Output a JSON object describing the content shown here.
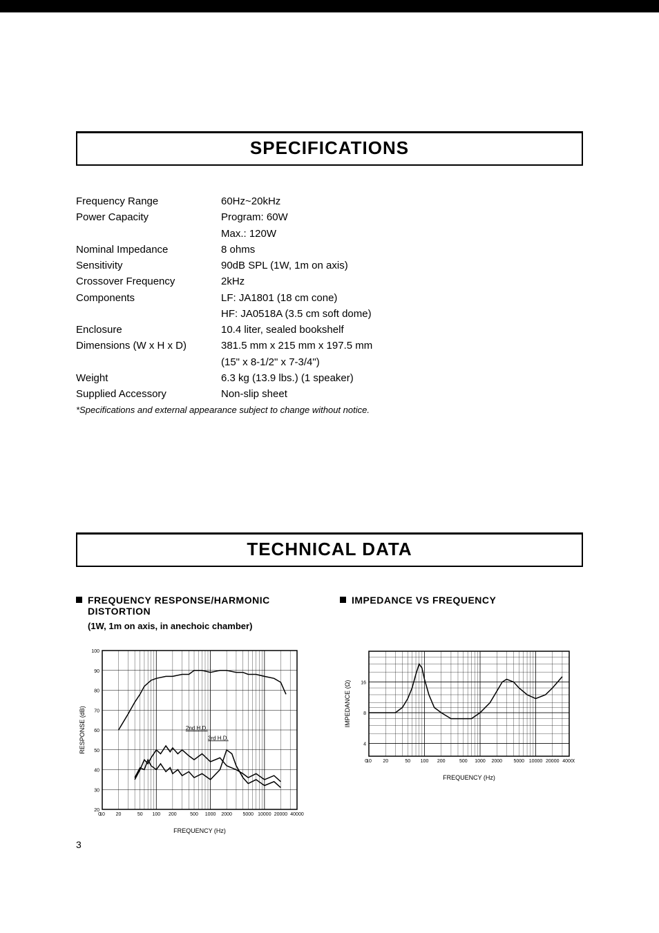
{
  "section_titles": {
    "specs": "SPECIFICATIONS",
    "tech": "TECHNICAL DATA"
  },
  "specs": {
    "rows": [
      {
        "label": "Frequency Range",
        "values": [
          "60Hz~20kHz"
        ]
      },
      {
        "label": "Power Capacity",
        "values": [
          "Program: 60W",
          "Max.: 120W"
        ]
      },
      {
        "label": "Nominal Impedance",
        "values": [
          "8 ohms"
        ]
      },
      {
        "label": "Sensitivity",
        "values": [
          "90dB SPL (1W, 1m on axis)"
        ]
      },
      {
        "label": "Crossover Frequency",
        "values": [
          "2kHz"
        ]
      },
      {
        "label": "Components",
        "values": [
          "LF: JA1801 (18 cm cone)",
          "HF: JA0518A (3.5 cm soft dome)"
        ]
      },
      {
        "label": "Enclosure",
        "values": [
          "10.4 liter, sealed bookshelf"
        ]
      },
      {
        "label": "Dimensions (W x H x D)",
        "values": [
          "381.5 mm x 215 mm x 197.5 mm",
          "(15\" x 8-1/2\" x 7-3/4\")"
        ]
      },
      {
        "label": "Weight",
        "values": [
          "6.3 kg (13.9 lbs.) (1 speaker)"
        ]
      },
      {
        "label": "Supplied Accessory",
        "values": [
          "Non-slip sheet"
        ]
      }
    ],
    "footnote": "*Specifications and external appearance subject to change without notice."
  },
  "freq_response_chart": {
    "type": "line",
    "title": "FREQUENCY RESPONSE/HARMONIC DISTORTION",
    "subtitle": "(1W, 1m on axis, in anechoic chamber)",
    "xlabel": "FREQUENCY (Hz)",
    "ylabel": "RESPONSE (dB)",
    "ylim": [
      20,
      100
    ],
    "ytick_step": 10,
    "x_ticks": [
      0,
      10,
      20,
      50,
      100,
      200,
      500,
      1000,
      2000,
      5000,
      10000,
      20000,
      40000
    ],
    "x_tick_labels": [
      "0",
      "10",
      "20",
      "50",
      "100",
      "200",
      "500",
      "1000",
      "2000",
      "5000",
      "10000",
      "20000",
      "40000"
    ],
    "background_color": "#ffffff",
    "grid_color": "#000000",
    "line_color": "#000000",
    "line_width": 1.5,
    "series": [
      {
        "name": "response",
        "points": [
          [
            20,
            60
          ],
          [
            30,
            68
          ],
          [
            40,
            74
          ],
          [
            50,
            78
          ],
          [
            60,
            82
          ],
          [
            80,
            85
          ],
          [
            100,
            86
          ],
          [
            150,
            87
          ],
          [
            200,
            87
          ],
          [
            300,
            88
          ],
          [
            400,
            88
          ],
          [
            500,
            90
          ],
          [
            700,
            90
          ],
          [
            1000,
            89
          ],
          [
            1500,
            90
          ],
          [
            2000,
            90
          ],
          [
            3000,
            89
          ],
          [
            4000,
            89
          ],
          [
            5000,
            88
          ],
          [
            7000,
            88
          ],
          [
            10000,
            87
          ],
          [
            15000,
            86
          ],
          [
            20000,
            84
          ],
          [
            25000,
            78
          ]
        ]
      },
      {
        "name": "2nd HD",
        "label": "2nd H.D.",
        "label_at": [
          350,
          60
        ],
        "points": [
          [
            40,
            35
          ],
          [
            50,
            40
          ],
          [
            60,
            45
          ],
          [
            70,
            43
          ],
          [
            80,
            46
          ],
          [
            100,
            50
          ],
          [
            120,
            48
          ],
          [
            150,
            52
          ],
          [
            180,
            49
          ],
          [
            200,
            51
          ],
          [
            250,
            48
          ],
          [
            300,
            50
          ],
          [
            400,
            47
          ],
          [
            500,
            45
          ],
          [
            700,
            48
          ],
          [
            1000,
            44
          ],
          [
            1500,
            46
          ],
          [
            2000,
            42
          ],
          [
            3000,
            40
          ],
          [
            4000,
            38
          ],
          [
            5000,
            36
          ],
          [
            7000,
            38
          ],
          [
            10000,
            35
          ],
          [
            15000,
            37
          ],
          [
            20000,
            34
          ]
        ]
      },
      {
        "name": "3rd HD",
        "label": "3rd H.D.",
        "label_at": [
          900,
          55
        ],
        "points": [
          [
            40,
            36
          ],
          [
            50,
            41
          ],
          [
            60,
            40
          ],
          [
            70,
            45
          ],
          [
            80,
            42
          ],
          [
            100,
            40
          ],
          [
            120,
            43
          ],
          [
            150,
            39
          ],
          [
            180,
            41
          ],
          [
            200,
            38
          ],
          [
            250,
            40
          ],
          [
            300,
            37
          ],
          [
            400,
            39
          ],
          [
            500,
            36
          ],
          [
            700,
            38
          ],
          [
            1000,
            35
          ],
          [
            1500,
            40
          ],
          [
            2000,
            50
          ],
          [
            2500,
            48
          ],
          [
            3000,
            42
          ],
          [
            4000,
            36
          ],
          [
            5000,
            33
          ],
          [
            7000,
            35
          ],
          [
            10000,
            32
          ],
          [
            15000,
            34
          ],
          [
            20000,
            31
          ]
        ]
      }
    ]
  },
  "impedance_chart": {
    "type": "line",
    "title": "IMPEDANCE VS FREQUENCY",
    "xlabel": "FREQUENCY (Hz)",
    "ylabel": "IMPEDANCE (Ω)",
    "y_ticks": [
      4,
      8,
      16
    ],
    "y_tick_labels": [
      "4",
      "8",
      "16"
    ],
    "x_ticks": [
      0,
      10,
      20,
      50,
      100,
      200,
      500,
      1000,
      2000,
      5000,
      10000,
      20000,
      40000
    ],
    "x_tick_labels": [
      "0",
      "10",
      "20",
      "50",
      "100",
      "200",
      "500",
      "1000",
      "2000",
      "5000",
      "10000",
      "20000",
      "40000"
    ],
    "background_color": "#ffffff",
    "grid_color": "#000000",
    "line_color": "#000000",
    "line_width": 1.5,
    "series": [
      {
        "name": "impedance",
        "points": [
          [
            10,
            8
          ],
          [
            20,
            8
          ],
          [
            30,
            8
          ],
          [
            40,
            9
          ],
          [
            50,
            11
          ],
          [
            60,
            14
          ],
          [
            70,
            19
          ],
          [
            80,
            24
          ],
          [
            90,
            22
          ],
          [
            100,
            17
          ],
          [
            120,
            12
          ],
          [
            150,
            9
          ],
          [
            200,
            8
          ],
          [
            300,
            7
          ],
          [
            500,
            7
          ],
          [
            700,
            7
          ],
          [
            1000,
            8
          ],
          [
            1500,
            10
          ],
          [
            2000,
            13
          ],
          [
            2500,
            16
          ],
          [
            3000,
            17
          ],
          [
            4000,
            16
          ],
          [
            5000,
            14
          ],
          [
            7000,
            12
          ],
          [
            10000,
            11
          ],
          [
            15000,
            12
          ],
          [
            20000,
            14
          ],
          [
            30000,
            18
          ]
        ]
      }
    ]
  },
  "page_number": "3",
  "colors": {
    "text": "#000000",
    "background": "#ffffff"
  }
}
